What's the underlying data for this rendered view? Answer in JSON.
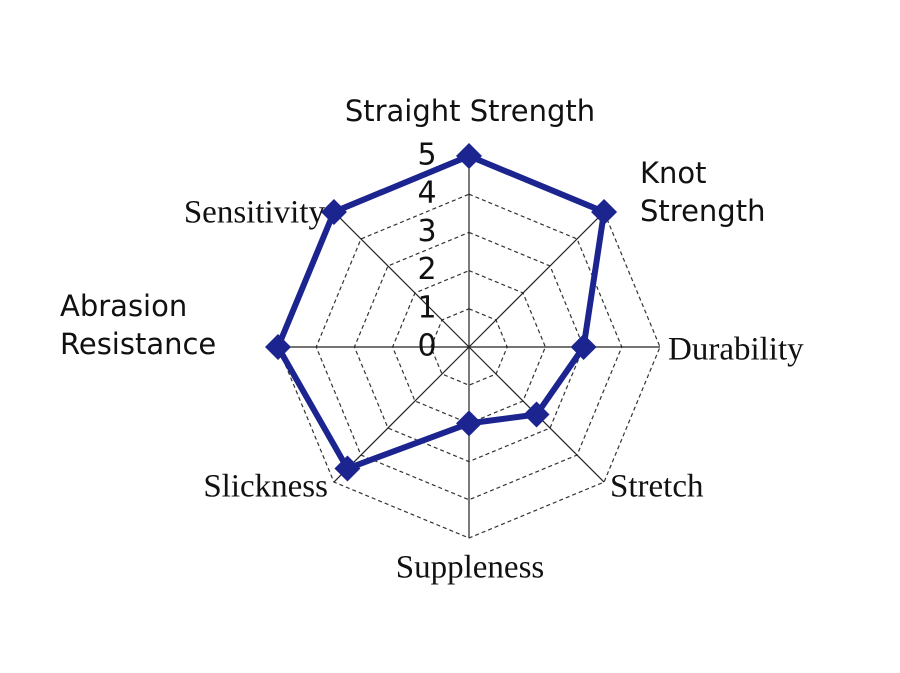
{
  "chart_data": {
    "type": "radar",
    "categories": [
      "Straight Strength",
      "Knot Strength",
      "Durability",
      "Stretch",
      "Suppleness",
      "Slickness",
      "Abrasion Resistance",
      "Sensitivity"
    ],
    "values": [
      5,
      5,
      3,
      2.5,
      2,
      4.5,
      5,
      5
    ],
    "color": "#1c2490",
    "rlim": [
      0,
      5
    ],
    "rticks": [
      0,
      1,
      2,
      3,
      4,
      5
    ],
    "grid": true
  }
}
